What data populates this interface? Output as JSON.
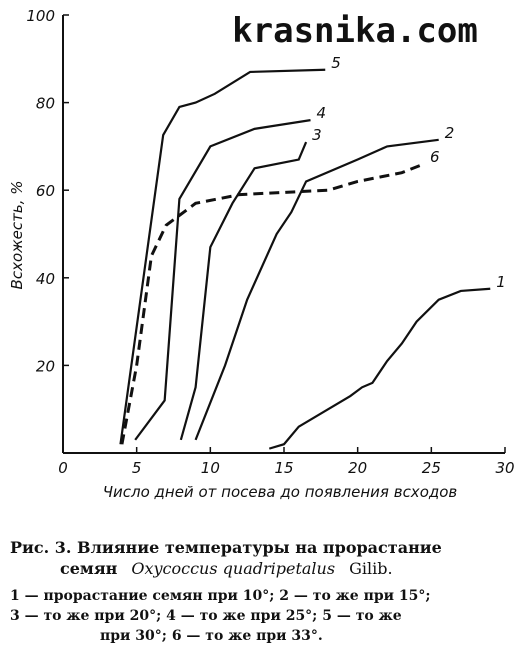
{
  "watermark": "krasnika.com",
  "chart_data": {
    "type": "line",
    "y_label": "Всхожесть, %",
    "x_label": "Число дней от посева до появления всходов",
    "xlim": [
      0,
      30
    ],
    "xticks": [
      0,
      5,
      10,
      15,
      20,
      25,
      30
    ],
    "ylim": [
      0,
      100
    ],
    "yticks": [
      20,
      40,
      60,
      80,
      100
    ],
    "series": [
      {
        "name": "1",
        "color": "#111",
        "x": [
          14,
          15,
          16,
          18,
          19.5,
          20.3,
          21,
          22,
          23,
          24,
          25.5,
          27,
          29
        ],
        "values": [
          1,
          2,
          6,
          10,
          13,
          15,
          16,
          21,
          25,
          30,
          35,
          37,
          37.5
        ]
      },
      {
        "name": "2",
        "color": "#111",
        "x": [
          9,
          11,
          12.5,
          14.5,
          15.5,
          16.5,
          20,
          22,
          25.5
        ],
        "values": [
          3,
          20,
          35,
          50,
          55,
          62,
          67,
          70,
          71.5
        ]
      },
      {
        "name": "3",
        "color": "#111",
        "x": [
          8,
          9,
          10,
          11.5,
          13,
          16,
          16.5
        ],
        "values": [
          3,
          15,
          47,
          57,
          65,
          67,
          71
        ]
      },
      {
        "name": "4",
        "color": "#111",
        "x": [
          4.9,
          6.9,
          7.9,
          10,
          13,
          16.8
        ],
        "values": [
          3,
          12,
          58,
          70,
          74,
          76
        ]
      },
      {
        "name": "5",
        "color": "#111",
        "x": [
          3.9,
          6.8,
          7.9,
          9,
          10.3,
          12.7,
          17.8
        ],
        "values": [
          2,
          72.6,
          79,
          80,
          82,
          87,
          87.5
        ]
      },
      {
        "name": "6",
        "color": "#111",
        "dashed": true,
        "x": [
          4,
          5,
          6,
          7,
          9,
          12,
          18,
          20,
          23,
          24.5
        ],
        "values": [
          2,
          20,
          45,
          52,
          57,
          59,
          60,
          62,
          64,
          66
        ]
      }
    ]
  },
  "caption": {
    "line1": "Рис. 3. Влияние температуры на прорастание",
    "line2_a": "семян",
    "line2_b": "Oxycoccus quadripetalus",
    "line2_c": "Gilib.",
    "notes": [
      "1 — прорастание семян при 10°; 2 — то же при 15°;",
      "3 — то же при 20°; 4 — то же при 25°; 5 — то же",
      "при 30°; 6 — то же при 33°."
    ]
  }
}
